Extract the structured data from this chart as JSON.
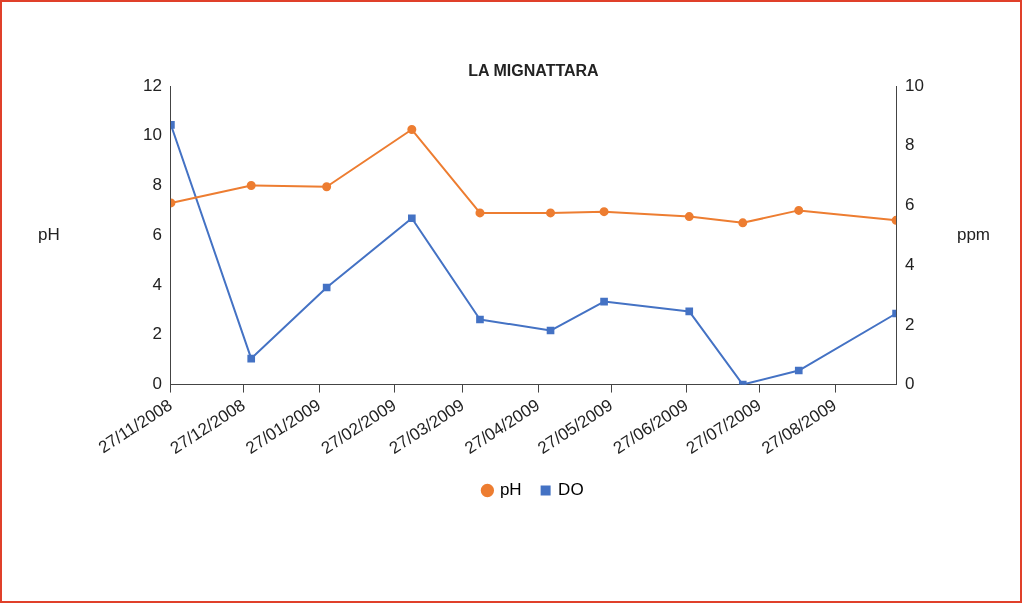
{
  "chart_data": {
    "type": "line",
    "title": "LA MIGNATTARA",
    "ylabel": "pH",
    "y2label": "ppm",
    "x": [
      "2008-11-27",
      "2008-12-30",
      "2009-01-30",
      "2009-03-06",
      "2009-04-03",
      "2009-05-02",
      "2009-05-24",
      "2009-06-28",
      "2009-07-20",
      "2009-08-12",
      "2009-09-21"
    ],
    "series": [
      {
        "name": "pH",
        "color": "#ed7d31",
        "marker": "circle",
        "values": [
          7.3,
          8.0,
          7.95,
          10.25,
          6.9,
          6.9,
          6.95,
          6.75,
          6.5,
          7.0,
          6.6
        ]
      },
      {
        "name": "DO",
        "color": "#4472c4",
        "marker": "square",
        "axis": "y2",
        "values": [
          8.7,
          0.87,
          3.25,
          5.57,
          2.18,
          1.81,
          2.78,
          2.45,
          0,
          0.47,
          2.38
        ]
      }
    ],
    "xlim": [
      "2008-11-27",
      "2009-09-21"
    ],
    "xticks": [
      {
        "value": "2008-11-27",
        "label": "27/11/2008"
      },
      {
        "value": "2008-12-27",
        "label": "27/12/2008"
      },
      {
        "value": "2009-01-27",
        "label": "27/01/2009"
      },
      {
        "value": "2009-02-27",
        "label": "27/02/2009"
      },
      {
        "value": "2009-03-27",
        "label": "27/03/2009"
      },
      {
        "value": "2009-04-27",
        "label": "27/04/2009"
      },
      {
        "value": "2009-05-27",
        "label": "27/05/2009"
      },
      {
        "value": "2009-06-27",
        "label": "27/06/2009"
      },
      {
        "value": "2009-07-27",
        "label": "27/07/2009"
      },
      {
        "value": "2009-08-27",
        "label": "27/08/2009"
      }
    ],
    "ylim": [
      0,
      12
    ],
    "yticks": [
      0,
      2,
      4,
      6,
      8,
      10,
      12
    ],
    "y2lim": [
      0,
      10
    ],
    "y2ticks": [
      0,
      2,
      4,
      6,
      8,
      10
    ],
    "grid": false,
    "legend": "bottom",
    "line_style": "solid"
  }
}
